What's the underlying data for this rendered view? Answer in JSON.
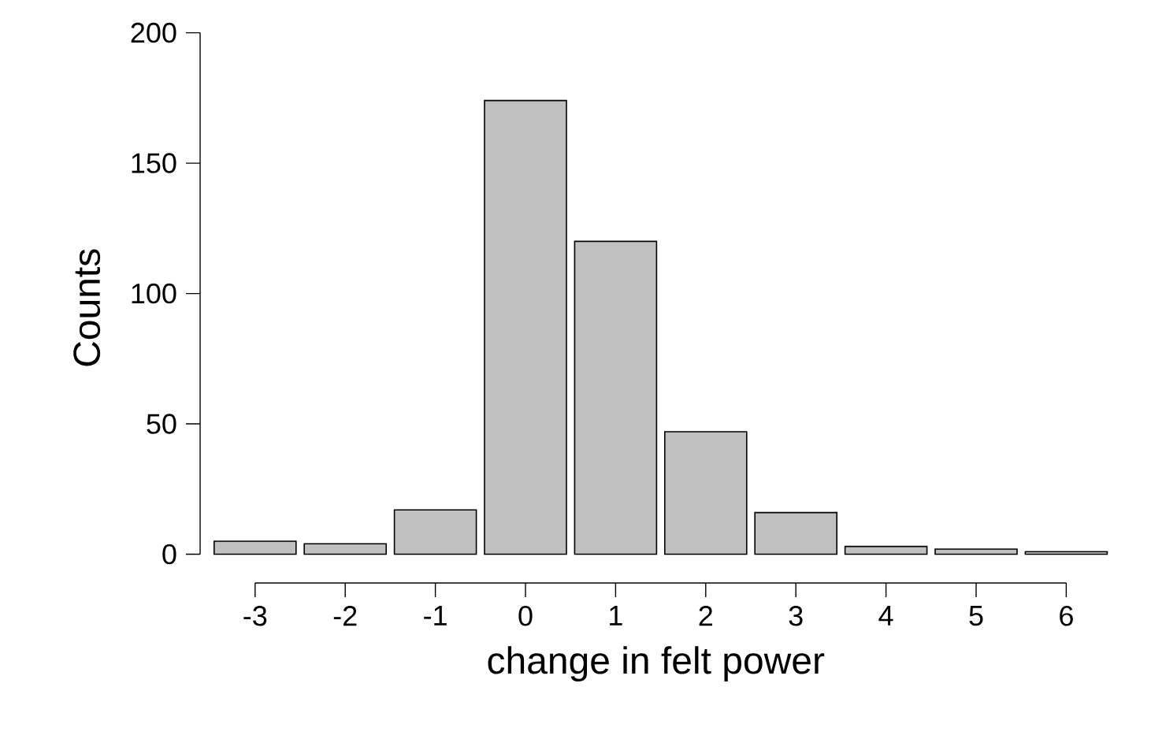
{
  "chart_data": {
    "type": "bar",
    "xlabel": "change in felt power",
    "ylabel": "Counts",
    "categories": [
      "-3",
      "-2",
      "-1",
      "0",
      "1",
      "2",
      "3",
      "4",
      "5",
      "6"
    ],
    "values": [
      5,
      4,
      17,
      174,
      120,
      47,
      16,
      3,
      2,
      1
    ],
    "color": "#c0c0c0",
    "ylim": [
      0,
      200
    ],
    "yticks": [
      0,
      50,
      100,
      150,
      200
    ]
  }
}
